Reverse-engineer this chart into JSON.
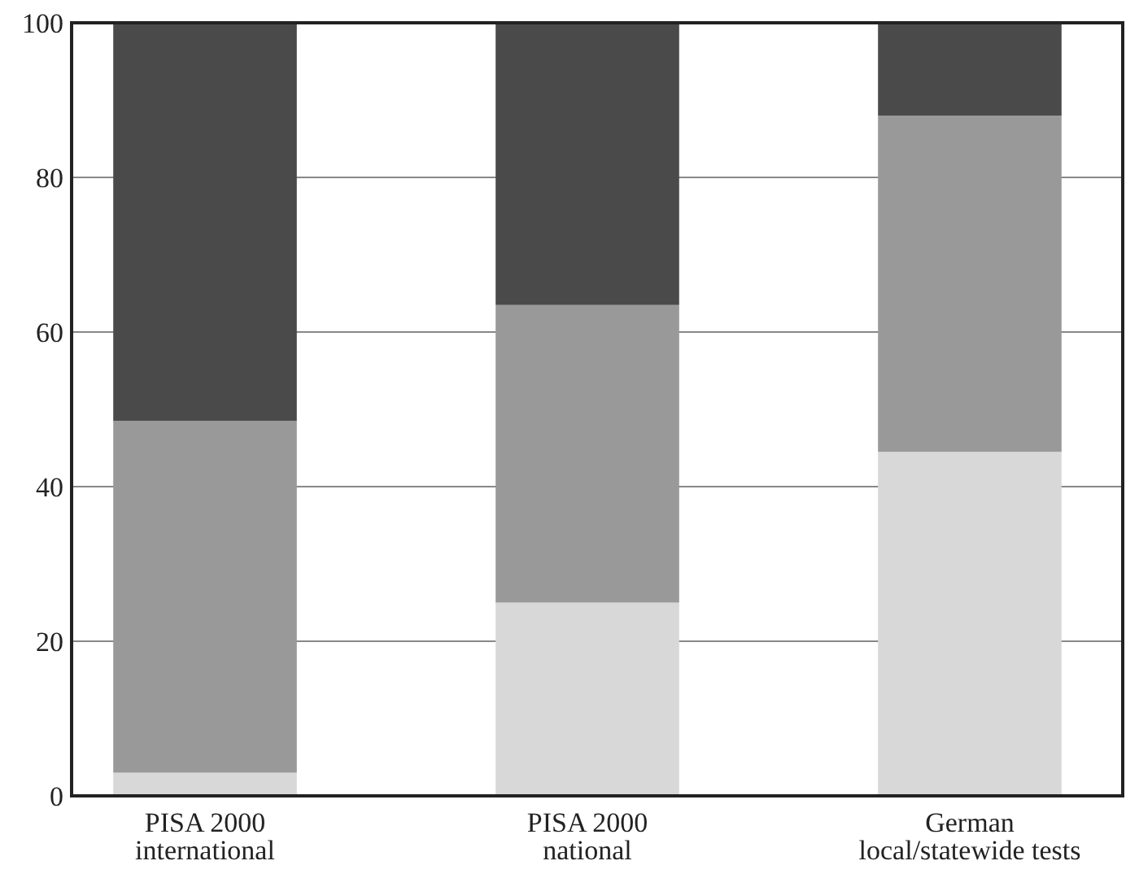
{
  "chart_data": {
    "type": "bar",
    "stacked": true,
    "categories": [
      "PISA 2000\ninternational",
      "PISA 2000\nnational",
      "German\nlocal/statewide tests"
    ],
    "series": [
      {
        "color": "#d8d8d8",
        "values": [
          3,
          25,
          44.5
        ]
      },
      {
        "color": "#999999",
        "values": [
          45.5,
          38.5,
          43.5
        ]
      },
      {
        "color": "#4a4a4a",
        "values": [
          51.5,
          36.5,
          12
        ]
      }
    ],
    "ylim": [
      0,
      100
    ],
    "yticks": [
      0,
      20,
      40,
      60,
      80,
      100
    ],
    "grid": "y"
  }
}
